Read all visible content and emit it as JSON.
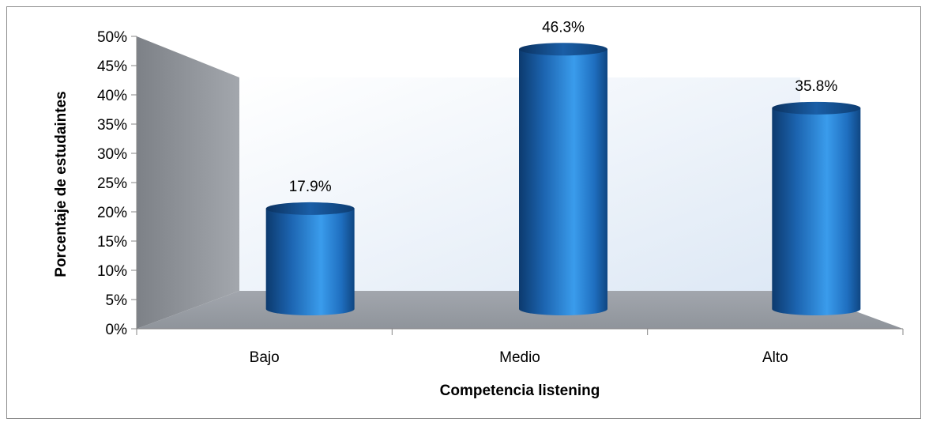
{
  "chart_data": {
    "type": "bar",
    "style": "3d-cylinder",
    "categories": [
      "Bajo",
      "Medio",
      "Alto"
    ],
    "values": [
      17.9,
      46.3,
      35.8
    ],
    "data_labels": [
      "17.9%",
      "46.3%",
      "35.8%"
    ],
    "xlabel": "Competencia listening",
    "ylabel": "Porcentaje de estudaintes",
    "ylim": [
      0,
      50
    ],
    "y_ticks": [
      "0%",
      "5%",
      "10%",
      "15%",
      "20%",
      "25%",
      "30%",
      "35%",
      "40%",
      "45%",
      "50%"
    ],
    "grid": false,
    "legend": "none",
    "colors": {
      "bar": "#1f6fc0",
      "bar_highlight": "#3fa0ee",
      "bar_shadow": "#0b2c55",
      "back_wall": "#e8f0fa",
      "side_wall": "#8e9298",
      "floor": "#a6aab1"
    }
  }
}
